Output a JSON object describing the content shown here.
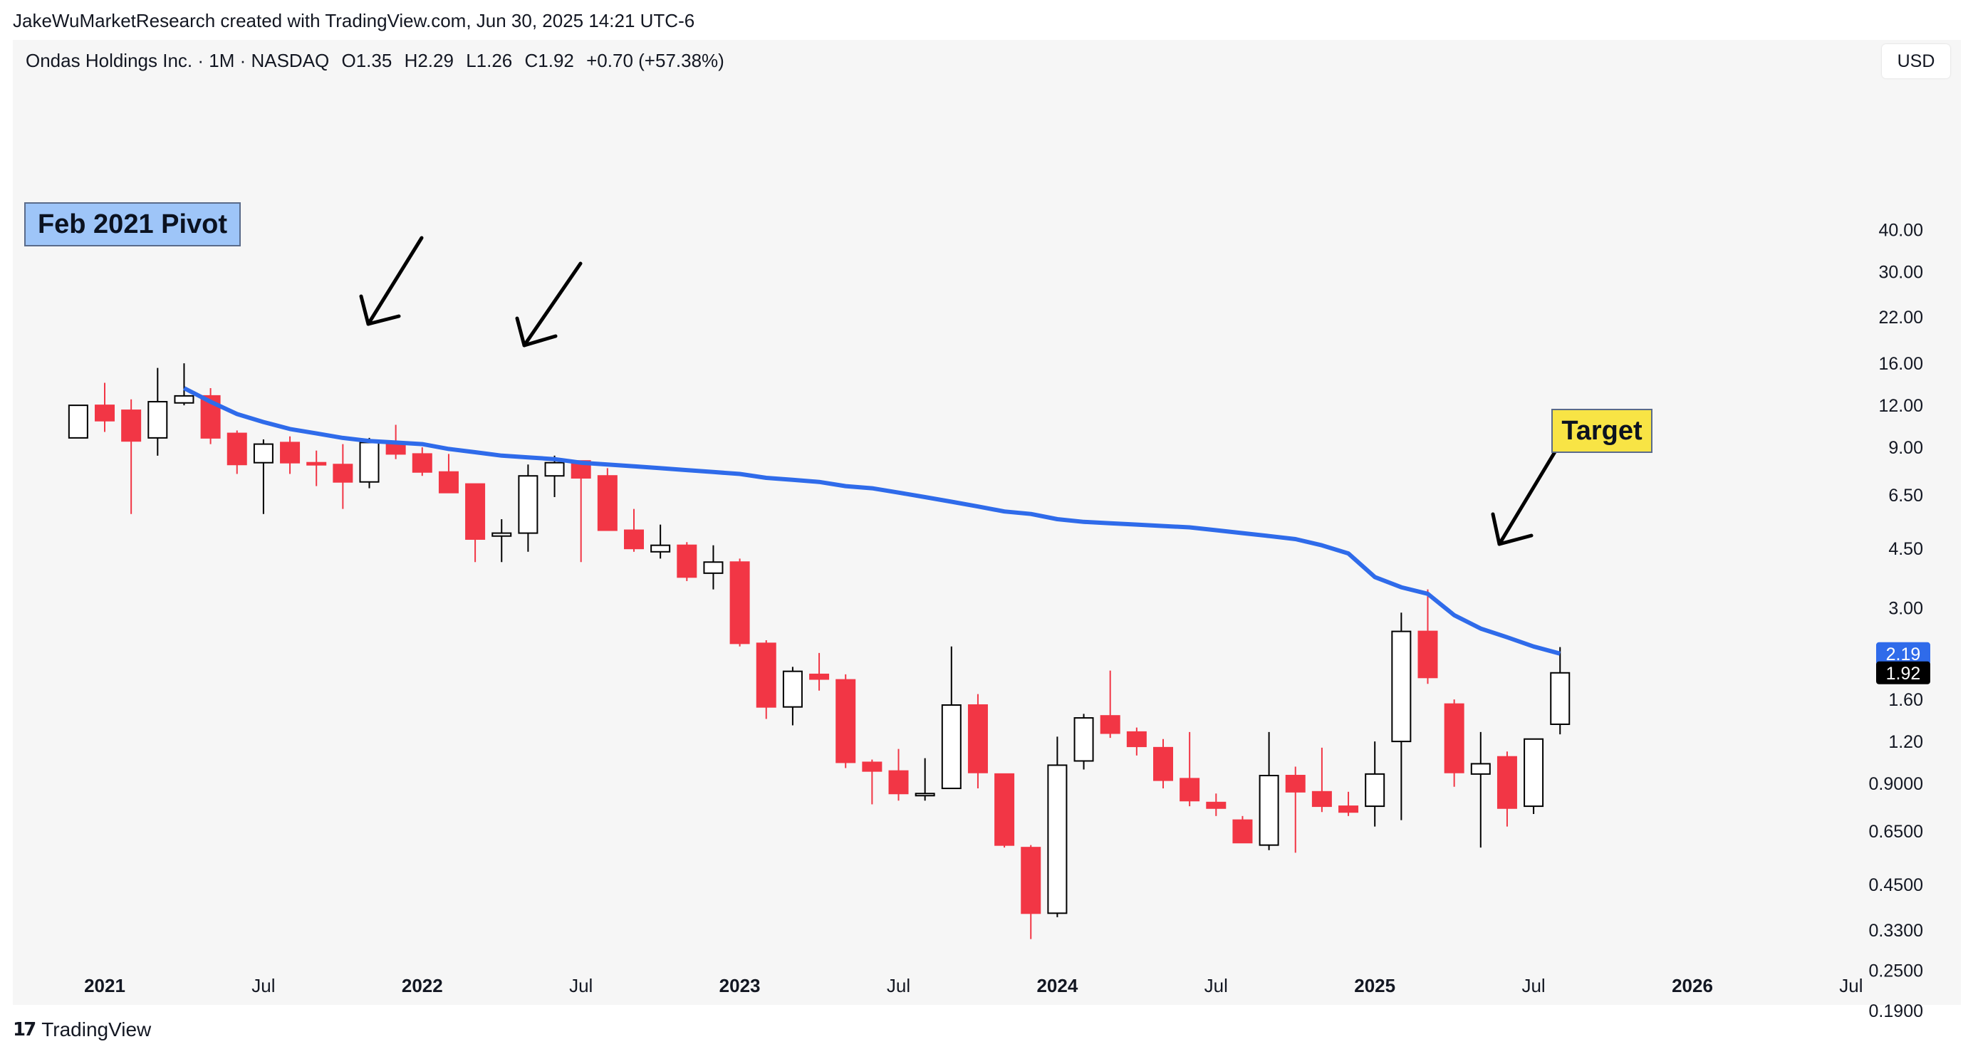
{
  "attribution": "JakeWuMarketResearch created with TradingView.com, Jun 30, 2025 14:21 UTC-6",
  "legend": {
    "symbol": "Ondas Holdings Inc. · 1M · NASDAQ",
    "open": "O1.35",
    "high": "H2.29",
    "low": "L1.26",
    "close": "C1.92",
    "change": "+0.70 (+57.38%)"
  },
  "currency": "USD",
  "footer": {
    "brand": "TradingView"
  },
  "annotations": {
    "pivot": "Feb 2021 Pivot",
    "target": "Target"
  },
  "price_tags": {
    "ma_value": "2.19",
    "ma_color": "#2f6bea",
    "last_value": "1.92"
  },
  "colors": {
    "up": "#ffffff",
    "up_border": "#000000",
    "down": "#f23645",
    "ma": "#2f6bea",
    "panel": "#f6f6f6"
  },
  "chart_data": {
    "type": "candlestick",
    "title": "",
    "scale": "log",
    "y_ticks": [
      "40.00",
      "30.00",
      "22.00",
      "16.00",
      "12.00",
      "9.00",
      "6.50",
      "4.50",
      "3.00",
      "2.19",
      "1.60",
      "1.20",
      "0.9000",
      "0.6500",
      "0.4500",
      "0.3300",
      "0.2500",
      "0.1900"
    ],
    "x_ticks": [
      {
        "label": "2021",
        "month": "2021-01"
      },
      {
        "label": "Jul",
        "month": "2021-07"
      },
      {
        "label": "2022",
        "month": "2022-01"
      },
      {
        "label": "Jul",
        "month": "2022-07"
      },
      {
        "label": "2023",
        "month": "2023-01"
      },
      {
        "label": "Jul",
        "month": "2023-07"
      },
      {
        "label": "2024",
        "month": "2024-01"
      },
      {
        "label": "Jul",
        "month": "2024-07"
      },
      {
        "label": "2025",
        "month": "2025-01"
      },
      {
        "label": "Jul",
        "month": "2025-07"
      },
      {
        "label": "2026",
        "month": "2026-01"
      },
      {
        "label": "Jul",
        "month": "2026-07"
      }
    ],
    "candles": [
      {
        "month": "2020-12",
        "open": 9.6,
        "high": 12.0,
        "low": 9.6,
        "close": 12.0
      },
      {
        "month": "2021-01",
        "open": 12.0,
        "high": 14.0,
        "low": 10.0,
        "close": 10.8
      },
      {
        "month": "2021-02",
        "open": 11.6,
        "high": 12.5,
        "low": 5.7,
        "close": 9.4
      },
      {
        "month": "2021-03",
        "open": 9.6,
        "high": 15.5,
        "low": 8.5,
        "close": 12.3
      },
      {
        "month": "2021-04",
        "open": 12.2,
        "high": 16.0,
        "low": 12.0,
        "close": 12.8
      },
      {
        "month": "2021-05",
        "open": 12.8,
        "high": 13.5,
        "low": 9.2,
        "close": 9.6
      },
      {
        "month": "2021-06",
        "open": 9.9,
        "high": 10.1,
        "low": 7.5,
        "close": 8.0
      },
      {
        "month": "2021-07",
        "open": 8.1,
        "high": 9.5,
        "low": 5.7,
        "close": 9.2
      },
      {
        "month": "2021-08",
        "open": 9.3,
        "high": 9.7,
        "low": 7.5,
        "close": 8.1
      },
      {
        "month": "2021-09",
        "open": 8.1,
        "high": 8.8,
        "low": 6.9,
        "close": 8.0
      },
      {
        "month": "2021-10",
        "open": 8.0,
        "high": 9.2,
        "low": 5.9,
        "close": 7.1
      },
      {
        "month": "2021-11",
        "open": 7.1,
        "high": 9.6,
        "low": 6.8,
        "close": 9.3
      },
      {
        "month": "2021-12",
        "open": 9.2,
        "high": 10.5,
        "low": 8.3,
        "close": 8.6
      },
      {
        "month": "2022-01",
        "open": 8.6,
        "high": 9.0,
        "low": 7.4,
        "close": 7.6
      },
      {
        "month": "2022-02",
        "open": 7.6,
        "high": 8.6,
        "low": 6.6,
        "close": 6.6
      },
      {
        "month": "2022-03",
        "open": 7.0,
        "high": 7.0,
        "low": 4.1,
        "close": 4.8
      },
      {
        "month": "2022-04",
        "open": 4.9,
        "high": 5.5,
        "low": 4.1,
        "close": 5.0
      },
      {
        "month": "2022-05",
        "open": 5.0,
        "high": 8.0,
        "low": 4.4,
        "close": 7.4
      },
      {
        "month": "2022-06",
        "open": 7.4,
        "high": 8.5,
        "low": 6.4,
        "close": 8.1
      },
      {
        "month": "2022-07",
        "open": 8.2,
        "high": 8.2,
        "low": 4.1,
        "close": 7.3
      },
      {
        "month": "2022-08",
        "open": 7.4,
        "high": 7.8,
        "low": 5.1,
        "close": 5.1
      },
      {
        "month": "2022-09",
        "open": 5.1,
        "high": 5.9,
        "low": 4.4,
        "close": 4.5
      },
      {
        "month": "2022-10",
        "open": 4.4,
        "high": 5.3,
        "low": 4.2,
        "close": 4.6
      },
      {
        "month": "2022-11",
        "open": 4.6,
        "high": 4.7,
        "low": 3.6,
        "close": 3.7
      },
      {
        "month": "2022-12",
        "open": 3.8,
        "high": 4.6,
        "low": 3.4,
        "close": 4.1
      },
      {
        "month": "2023-01",
        "open": 4.1,
        "high": 4.2,
        "low": 2.3,
        "close": 2.35
      },
      {
        "month": "2023-02",
        "open": 2.35,
        "high": 2.4,
        "low": 1.4,
        "close": 1.52
      },
      {
        "month": "2023-03",
        "open": 1.52,
        "high": 2.0,
        "low": 1.34,
        "close": 1.94
      },
      {
        "month": "2023-04",
        "open": 1.9,
        "high": 2.2,
        "low": 1.7,
        "close": 1.84
      },
      {
        "month": "2023-05",
        "open": 1.83,
        "high": 1.9,
        "low": 1.0,
        "close": 1.04
      },
      {
        "month": "2023-06",
        "open": 1.04,
        "high": 1.06,
        "low": 0.78,
        "close": 0.98
      },
      {
        "month": "2023-07",
        "open": 0.98,
        "high": 1.14,
        "low": 0.8,
        "close": 0.84
      },
      {
        "month": "2023-08",
        "open": 0.84,
        "high": 1.07,
        "low": 0.8,
        "close": 0.84
      },
      {
        "month": "2023-09",
        "open": 0.87,
        "high": 2.3,
        "low": 0.87,
        "close": 1.54
      },
      {
        "month": "2023-10",
        "open": 1.54,
        "high": 1.66,
        "low": 0.87,
        "close": 0.97
      },
      {
        "month": "2023-11",
        "open": 0.96,
        "high": 0.96,
        "low": 0.58,
        "close": 0.59
      },
      {
        "month": "2023-12",
        "open": 0.58,
        "high": 0.59,
        "low": 0.31,
        "close": 0.37
      },
      {
        "month": "2024-01",
        "open": 0.37,
        "high": 1.24,
        "low": 0.36,
        "close": 1.02
      },
      {
        "month": "2024-02",
        "open": 1.05,
        "high": 1.45,
        "low": 0.99,
        "close": 1.41
      },
      {
        "month": "2024-03",
        "open": 1.43,
        "high": 1.95,
        "low": 1.23,
        "close": 1.27
      },
      {
        "month": "2024-04",
        "open": 1.28,
        "high": 1.32,
        "low": 1.09,
        "close": 1.16
      },
      {
        "month": "2024-05",
        "open": 1.15,
        "high": 1.22,
        "low": 0.87,
        "close": 0.92
      },
      {
        "month": "2024-06",
        "open": 0.93,
        "high": 1.28,
        "low": 0.77,
        "close": 0.8
      },
      {
        "month": "2024-07",
        "open": 0.79,
        "high": 0.84,
        "low": 0.72,
        "close": 0.76
      },
      {
        "month": "2024-08",
        "open": 0.7,
        "high": 0.72,
        "low": 0.6,
        "close": 0.6
      },
      {
        "month": "2024-09",
        "open": 0.59,
        "high": 1.28,
        "low": 0.57,
        "close": 0.95
      },
      {
        "month": "2024-10",
        "open": 0.95,
        "high": 1.01,
        "low": 0.56,
        "close": 0.85
      },
      {
        "month": "2024-11",
        "open": 0.85,
        "high": 1.15,
        "low": 0.74,
        "close": 0.77
      },
      {
        "month": "2024-12",
        "open": 0.77,
        "high": 0.85,
        "low": 0.72,
        "close": 0.74
      },
      {
        "month": "2025-01",
        "open": 0.77,
        "high": 1.2,
        "low": 0.67,
        "close": 0.96
      },
      {
        "month": "2025-02",
        "open": 1.2,
        "high": 2.9,
        "low": 0.7,
        "close": 2.55
      },
      {
        "month": "2025-03",
        "open": 2.55,
        "high": 3.4,
        "low": 1.78,
        "close": 1.86
      },
      {
        "month": "2025-04",
        "open": 1.55,
        "high": 1.6,
        "low": 0.88,
        "close": 0.97
      },
      {
        "month": "2025-05",
        "open": 0.96,
        "high": 1.28,
        "low": 0.58,
        "close": 1.03
      },
      {
        "month": "2025-06",
        "open": 1.08,
        "high": 1.12,
        "low": 0.67,
        "close": 0.76
      },
      {
        "month": "2025-07",
        "open": 0.77,
        "high": 1.2,
        "low": 0.73,
        "close": 1.22
      },
      {
        "month": "2025-08",
        "open": 1.35,
        "high": 2.29,
        "low": 1.26,
        "close": 1.92
      }
    ],
    "moving_average": [
      {
        "month": "2021-04",
        "value": 13.5
      },
      {
        "month": "2021-05",
        "value": 12.3
      },
      {
        "month": "2021-06",
        "value": 11.3
      },
      {
        "month": "2021-07",
        "value": 10.7
      },
      {
        "month": "2021-08",
        "value": 10.2
      },
      {
        "month": "2021-09",
        "value": 9.9
      },
      {
        "month": "2021-10",
        "value": 9.6
      },
      {
        "month": "2021-11",
        "value": 9.4
      },
      {
        "month": "2021-12",
        "value": 9.3
      },
      {
        "month": "2022-01",
        "value": 9.2
      },
      {
        "month": "2022-02",
        "value": 8.9
      },
      {
        "month": "2022-03",
        "value": 8.7
      },
      {
        "month": "2022-04",
        "value": 8.5
      },
      {
        "month": "2022-05",
        "value": 8.4
      },
      {
        "month": "2022-06",
        "value": 8.3
      },
      {
        "month": "2022-07",
        "value": 8.1
      },
      {
        "month": "2022-08",
        "value": 8.0
      },
      {
        "month": "2022-09",
        "value": 7.9
      },
      {
        "month": "2022-10",
        "value": 7.8
      },
      {
        "month": "2022-11",
        "value": 7.7
      },
      {
        "month": "2022-12",
        "value": 7.6
      },
      {
        "month": "2023-01",
        "value": 7.5
      },
      {
        "month": "2023-02",
        "value": 7.3
      },
      {
        "month": "2023-03",
        "value": 7.2
      },
      {
        "month": "2023-04",
        "value": 7.1
      },
      {
        "month": "2023-05",
        "value": 6.9
      },
      {
        "month": "2023-06",
        "value": 6.8
      },
      {
        "month": "2023-07",
        "value": 6.6
      },
      {
        "month": "2023-08",
        "value": 6.4
      },
      {
        "month": "2023-09",
        "value": 6.2
      },
      {
        "month": "2023-10",
        "value": 6.0
      },
      {
        "month": "2023-11",
        "value": 5.8
      },
      {
        "month": "2023-12",
        "value": 5.7
      },
      {
        "month": "2024-01",
        "value": 5.5
      },
      {
        "month": "2024-02",
        "value": 5.4
      },
      {
        "month": "2024-03",
        "value": 5.35
      },
      {
        "month": "2024-04",
        "value": 5.3
      },
      {
        "month": "2024-05",
        "value": 5.25
      },
      {
        "month": "2024-06",
        "value": 5.2
      },
      {
        "month": "2024-07",
        "value": 5.1
      },
      {
        "month": "2024-08",
        "value": 5.0
      },
      {
        "month": "2024-09",
        "value": 4.9
      },
      {
        "month": "2024-10",
        "value": 4.8
      },
      {
        "month": "2024-11",
        "value": 4.6
      },
      {
        "month": "2024-12",
        "value": 4.35
      },
      {
        "month": "2025-01",
        "value": 3.7
      },
      {
        "month": "2025-02",
        "value": 3.45
      },
      {
        "month": "2025-03",
        "value": 3.3
      },
      {
        "month": "2025-04",
        "value": 2.85
      },
      {
        "month": "2025-05",
        "value": 2.6
      },
      {
        "month": "2025-06",
        "value": 2.45
      },
      {
        "month": "2025-07",
        "value": 2.3
      },
      {
        "month": "2025-08",
        "value": 2.19
      }
    ],
    "annotations": [
      {
        "text": "Feb 2021 Pivot",
        "month": "2021-03"
      },
      {
        "text": "Target",
        "month": "2025-08"
      }
    ]
  }
}
